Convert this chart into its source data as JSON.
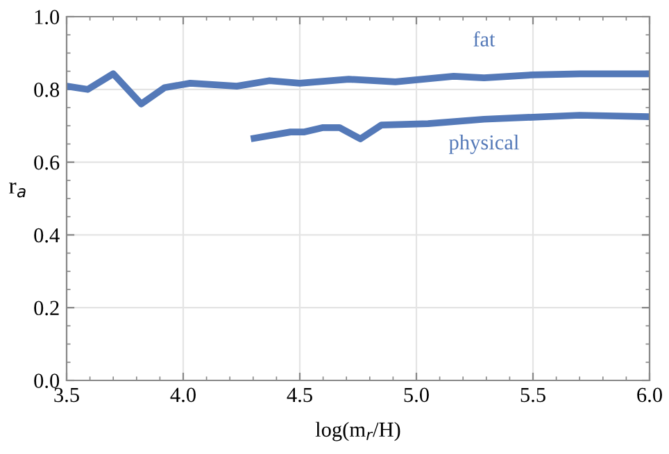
{
  "chart_data": {
    "type": "line",
    "xlabel": "log(m$_{r}$/H)",
    "ylabel": "r$_{a}$",
    "xlim": [
      3.5,
      6.0
    ],
    "xticks": [
      {
        "value": 3.5,
        "label": "3.5"
      },
      {
        "value": 4.0,
        "label": "4.0"
      },
      {
        "value": 4.5,
        "label": "4.5"
      },
      {
        "value": 5.0,
        "label": "5.0"
      },
      {
        "value": 5.5,
        "label": "5.5"
      },
      {
        "value": 6.0,
        "label": "6.0"
      }
    ],
    "ylim": [
      0.0,
      1.0
    ],
    "yticks": [
      {
        "value": 0.0,
        "label": "0.0"
      },
      {
        "value": 0.2,
        "label": "0.2"
      },
      {
        "value": 0.4,
        "label": "0.4"
      },
      {
        "value": 0.6,
        "label": "0.6"
      },
      {
        "value": 0.8,
        "label": "0.8"
      },
      {
        "value": 1.0,
        "label": "1.0"
      }
    ],
    "grid": true,
    "legend": false,
    "line_style": "solid",
    "marker": "none",
    "series": [
      {
        "name": "fat",
        "color": "#5479b8",
        "x": [
          3.5,
          3.59,
          3.7,
          3.82,
          3.92,
          4.03,
          4.23,
          4.37,
          4.5,
          4.71,
          4.91,
          5.16,
          5.29,
          5.5,
          5.7,
          6.0
        ],
        "values": [
          0.809,
          0.8,
          0.843,
          0.76,
          0.805,
          0.817,
          0.809,
          0.824,
          0.817,
          0.828,
          0.821,
          0.836,
          0.832,
          0.84,
          0.843,
          0.843
        ]
      },
      {
        "name": "physical",
        "color": "#5479b8",
        "x": [
          4.29,
          4.46,
          4.52,
          4.6,
          4.67,
          4.76,
          4.85,
          5.05,
          5.29,
          5.7,
          6.0
        ],
        "values": [
          0.664,
          0.683,
          0.683,
          0.695,
          0.695,
          0.664,
          0.702,
          0.706,
          0.718,
          0.729,
          0.725
        ]
      }
    ]
  }
}
